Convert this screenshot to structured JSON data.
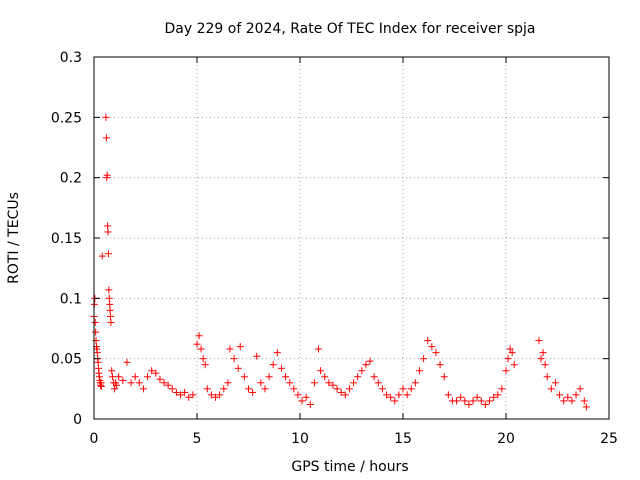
{
  "chart_data": {
    "type": "scatter",
    "title": "Day 229 of 2024, Rate Of TEC Index for receiver spja",
    "xlabel": "GPS time / hours",
    "ylabel": "ROTI / TECUs",
    "xlim": [
      0,
      25
    ],
    "ylim": [
      0,
      0.3
    ],
    "x_ticks": [
      0,
      5,
      10,
      15,
      20,
      25
    ],
    "x_tick_labels": [
      "0",
      "5",
      "10",
      "15",
      "20",
      "25"
    ],
    "y_ticks": [
      0,
      0.05,
      0.1,
      0.15,
      0.2,
      0.25,
      0.3
    ],
    "y_tick_labels": [
      "0",
      "0.05",
      "0.1",
      "0.15",
      "0.2",
      "0.25",
      "0.3"
    ],
    "grid": true,
    "marker": "plus",
    "color": "#ff0000",
    "series": [
      {
        "points": [
          [
            0.0,
            0.085
          ],
          [
            0.02,
            0.095
          ],
          [
            0.04,
            0.1
          ],
          [
            0.06,
            0.08
          ],
          [
            0.08,
            0.072
          ],
          [
            0.1,
            0.065
          ],
          [
            0.12,
            0.06
          ],
          [
            0.14,
            0.058
          ],
          [
            0.16,
            0.055
          ],
          [
            0.18,
            0.05
          ],
          [
            0.2,
            0.047
          ],
          [
            0.22,
            0.042
          ],
          [
            0.24,
            0.038
          ],
          [
            0.26,
            0.035
          ],
          [
            0.28,
            0.032
          ],
          [
            0.3,
            0.03
          ],
          [
            0.32,
            0.028
          ],
          [
            0.34,
            0.03
          ],
          [
            0.36,
            0.027
          ],
          [
            0.4,
            0.135
          ],
          [
            0.58,
            0.25
          ],
          [
            0.6,
            0.233
          ],
          [
            0.62,
            0.2
          ],
          [
            0.64,
            0.202
          ],
          [
            0.66,
            0.16
          ],
          [
            0.68,
            0.155
          ],
          [
            0.7,
            0.137
          ],
          [
            0.72,
            0.107
          ],
          [
            0.74,
            0.1
          ],
          [
            0.76,
            0.095
          ],
          [
            0.78,
            0.09
          ],
          [
            0.8,
            0.085
          ],
          [
            0.82,
            0.08
          ],
          [
            0.86,
            0.04
          ],
          [
            0.9,
            0.035
          ],
          [
            0.95,
            0.03
          ],
          [
            1.0,
            0.025
          ],
          [
            1.05,
            0.03
          ],
          [
            1.1,
            0.028
          ],
          [
            1.2,
            0.035
          ],
          [
            1.4,
            0.032
          ],
          [
            1.6,
            0.047
          ],
          [
            1.8,
            0.03
          ],
          [
            2.0,
            0.035
          ],
          [
            2.2,
            0.03
          ],
          [
            2.4,
            0.025
          ],
          [
            2.6,
            0.035
          ],
          [
            2.8,
            0.04
          ],
          [
            3.0,
            0.038
          ],
          [
            3.2,
            0.033
          ],
          [
            3.4,
            0.03
          ],
          [
            3.6,
            0.028
          ],
          [
            3.8,
            0.025
          ],
          [
            4.0,
            0.022
          ],
          [
            4.2,
            0.02
          ],
          [
            4.4,
            0.022
          ],
          [
            4.6,
            0.018
          ],
          [
            4.8,
            0.02
          ],
          [
            5.0,
            0.062
          ],
          [
            5.1,
            0.069
          ],
          [
            5.2,
            0.058
          ],
          [
            5.3,
            0.05
          ],
          [
            5.4,
            0.045
          ],
          [
            5.5,
            0.025
          ],
          [
            5.7,
            0.02
          ],
          [
            5.9,
            0.018
          ],
          [
            6.1,
            0.02
          ],
          [
            6.3,
            0.025
          ],
          [
            6.5,
            0.03
          ],
          [
            6.6,
            0.058
          ],
          [
            6.8,
            0.05
          ],
          [
            7.0,
            0.042
          ],
          [
            7.1,
            0.06
          ],
          [
            7.3,
            0.035
          ],
          [
            7.5,
            0.025
          ],
          [
            7.7,
            0.022
          ],
          [
            7.9,
            0.052
          ],
          [
            8.1,
            0.03
          ],
          [
            8.3,
            0.025
          ],
          [
            8.5,
            0.035
          ],
          [
            8.7,
            0.045
          ],
          [
            8.9,
            0.055
          ],
          [
            9.1,
            0.042
          ],
          [
            9.3,
            0.035
          ],
          [
            9.5,
            0.03
          ],
          [
            9.7,
            0.025
          ],
          [
            9.9,
            0.02
          ],
          [
            10.1,
            0.015
          ],
          [
            10.3,
            0.018
          ],
          [
            10.5,
            0.012
          ],
          [
            10.7,
            0.03
          ],
          [
            10.9,
            0.058
          ],
          [
            11.0,
            0.04
          ],
          [
            11.2,
            0.035
          ],
          [
            11.4,
            0.03
          ],
          [
            11.6,
            0.028
          ],
          [
            11.8,
            0.025
          ],
          [
            12.0,
            0.022
          ],
          [
            12.2,
            0.02
          ],
          [
            12.4,
            0.025
          ],
          [
            12.6,
            0.03
          ],
          [
            12.8,
            0.035
          ],
          [
            13.0,
            0.04
          ],
          [
            13.2,
            0.045
          ],
          [
            13.4,
            0.048
          ],
          [
            13.6,
            0.035
          ],
          [
            13.8,
            0.03
          ],
          [
            14.0,
            0.025
          ],
          [
            14.2,
            0.02
          ],
          [
            14.4,
            0.018
          ],
          [
            14.6,
            0.015
          ],
          [
            14.8,
            0.02
          ],
          [
            15.0,
            0.025
          ],
          [
            15.2,
            0.02
          ],
          [
            15.4,
            0.025
          ],
          [
            15.6,
            0.03
          ],
          [
            15.8,
            0.04
          ],
          [
            16.0,
            0.05
          ],
          [
            16.2,
            0.065
          ],
          [
            16.4,
            0.06
          ],
          [
            16.6,
            0.055
          ],
          [
            16.8,
            0.045
          ],
          [
            17.0,
            0.035
          ],
          [
            17.2,
            0.02
          ],
          [
            17.4,
            0.015
          ],
          [
            17.6,
            0.015
          ],
          [
            17.8,
            0.018
          ],
          [
            18.0,
            0.015
          ],
          [
            18.2,
            0.012
          ],
          [
            18.4,
            0.015
          ],
          [
            18.6,
            0.018
          ],
          [
            18.8,
            0.015
          ],
          [
            19.0,
            0.012
          ],
          [
            19.2,
            0.015
          ],
          [
            19.4,
            0.018
          ],
          [
            19.6,
            0.02
          ],
          [
            19.8,
            0.025
          ],
          [
            20.0,
            0.04
          ],
          [
            20.1,
            0.05
          ],
          [
            20.2,
            0.058
          ],
          [
            20.3,
            0.055
          ],
          [
            20.4,
            0.045
          ],
          [
            21.6,
            0.065
          ],
          [
            21.7,
            0.05
          ],
          [
            21.8,
            0.055
          ],
          [
            21.9,
            0.045
          ],
          [
            22.0,
            0.035
          ],
          [
            22.2,
            0.025
          ],
          [
            22.4,
            0.03
          ],
          [
            22.6,
            0.02
          ],
          [
            22.8,
            0.015
          ],
          [
            23.0,
            0.018
          ],
          [
            23.2,
            0.015
          ],
          [
            23.4,
            0.02
          ],
          [
            23.6,
            0.025
          ],
          [
            23.8,
            0.015
          ],
          [
            23.9,
            0.01
          ]
        ]
      }
    ]
  }
}
